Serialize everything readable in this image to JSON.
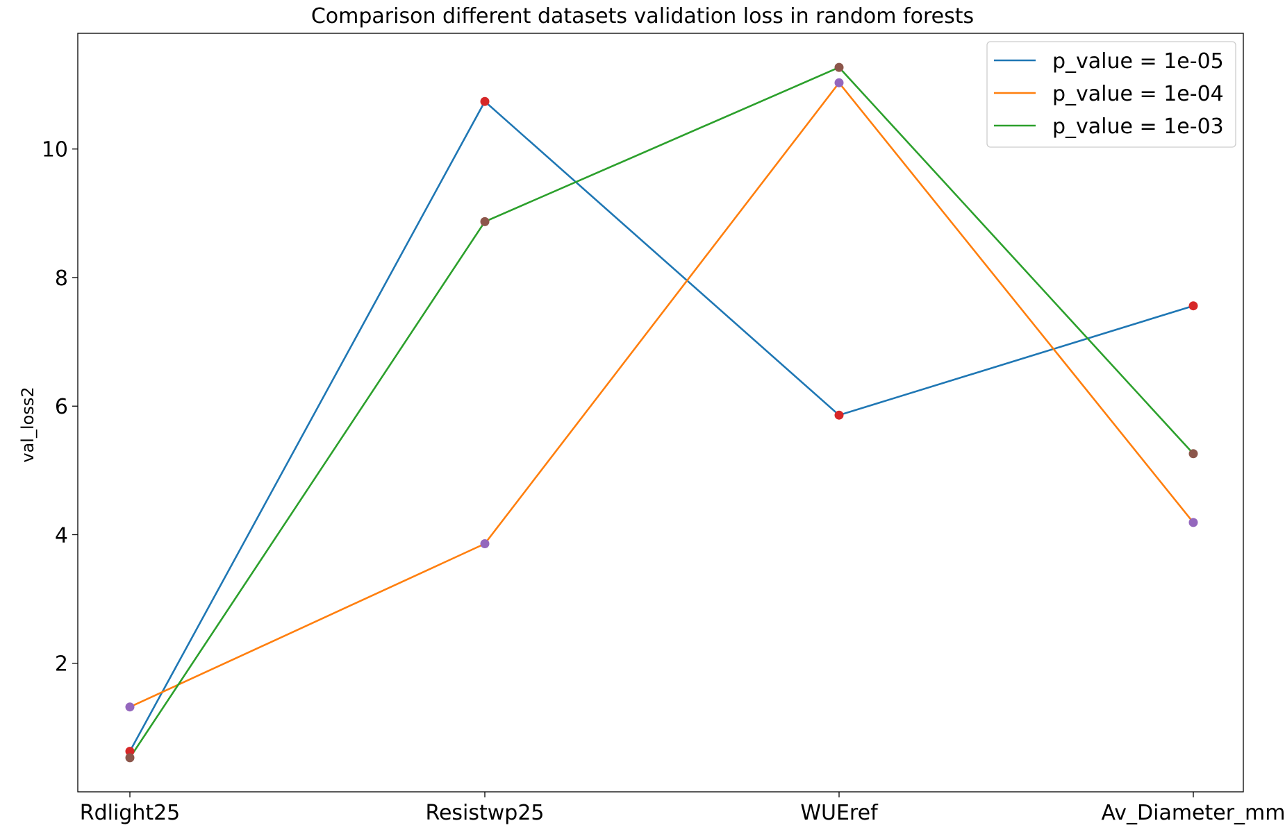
{
  "chart_data": {
    "type": "line",
    "title": "Comparison different datasets validation loss in random forests",
    "xlabel": "",
    "ylabel": "val_loss2",
    "categories": [
      "Rdlight25",
      "Resistwp25",
      "WUEref",
      "Av_Diameter_mm"
    ],
    "yticks": [
      2,
      4,
      6,
      8,
      10
    ],
    "ylim": [
      0,
      11.8
    ],
    "grid": false,
    "legend_position": "top-right",
    "series": [
      {
        "name": "p_value = 1e-05",
        "color": "#1f77b4",
        "marker_color": "#d62728",
        "values": [
          0.63,
          10.74,
          5.86,
          7.56
        ]
      },
      {
        "name": "p_value = 1e-04",
        "color": "#ff7f0e",
        "marker_color": "#9467bd",
        "values": [
          1.32,
          3.86,
          11.03,
          4.19
        ]
      },
      {
        "name": "p_value = 1e-03",
        "color": "#2ca02c",
        "marker_color": "#8c564b",
        "values": [
          0.53,
          8.87,
          11.27,
          5.26
        ]
      }
    ]
  }
}
